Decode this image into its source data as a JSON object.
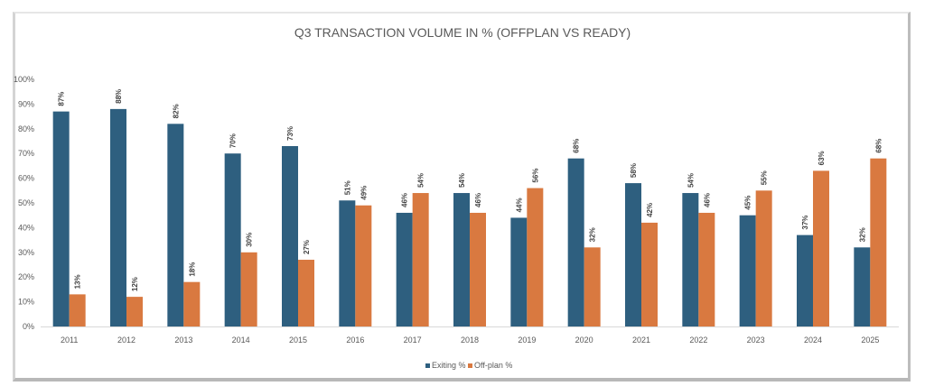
{
  "chart_data": {
    "type": "bar",
    "title": "Q3 TRANSACTION VOLUME IN % (OFFPLAN VS READY)",
    "xlabel": "",
    "ylabel": "",
    "ylim": [
      0,
      100
    ],
    "y_ticks": [
      "0%",
      "10%",
      "20%",
      "30%",
      "40%",
      "50%",
      "60%",
      "70%",
      "80%",
      "90%",
      "100%"
    ],
    "grid": false,
    "legend_position": "bottom",
    "categories": [
      "2011",
      "2012",
      "2013",
      "2014",
      "2015",
      "2016",
      "2017",
      "2018",
      "2019",
      "2020",
      "2021",
      "2022",
      "2023",
      "2024",
      "2025"
    ],
    "series": [
      {
        "name": "Exiting %",
        "color": "#2e5f7f",
        "values": [
          87,
          88,
          82,
          70,
          73,
          51,
          46,
          54,
          44,
          68,
          58,
          54,
          45,
          37,
          32
        ],
        "labels": [
          "87%",
          "88%",
          "82%",
          "70%",
          "73%",
          "51%",
          "46%",
          "54%",
          "44%",
          "68%",
          "58%",
          "54%",
          "45%",
          "37%",
          "32%"
        ]
      },
      {
        "name": "Off-plan %",
        "color": "#d97940",
        "values": [
          13,
          12,
          18,
          30,
          27,
          49,
          54,
          46,
          56,
          32,
          42,
          46,
          55,
          63,
          68
        ],
        "labels": [
          "13%",
          "12%",
          "18%",
          "30%",
          "27%",
          "49%",
          "54%",
          "46%",
          "56%",
          "32%",
          "42%",
          "46%",
          "55%",
          "63%",
          "68%"
        ]
      }
    ]
  }
}
